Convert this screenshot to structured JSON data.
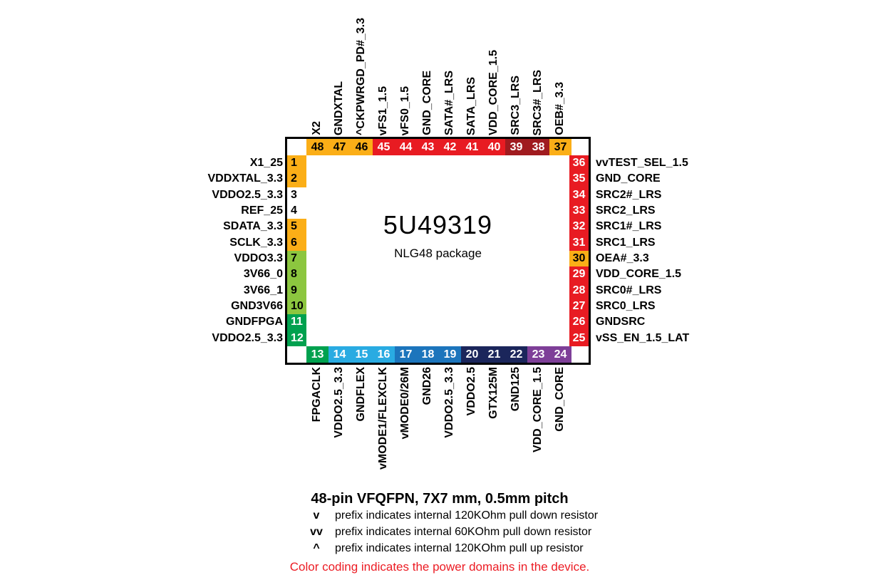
{
  "chip": {
    "part_number": "5U49319",
    "package_label": "NLG48 package"
  },
  "palette": {
    "orange": "#FBAE17",
    "white": "#FFFFFF",
    "lightgreen": "#8CC63F",
    "green": "#00A14F",
    "cyan": "#29ABE2",
    "blue": "#1C75BC",
    "navy": "#1B265B",
    "purple": "#7E3F98",
    "red": "#E81B22",
    "maroon": "#A01B1F",
    "black": "#000000",
    "textwhite": "#FFFFFF"
  },
  "pins": {
    "top": [
      {
        "n": "48",
        "label": "X2",
        "bg": "orange",
        "fg": "black"
      },
      {
        "n": "47",
        "label": "GNDXTAL",
        "bg": "orange",
        "fg": "black"
      },
      {
        "n": "46",
        "label": "^CKPWRGD_PD#_3.3",
        "bg": "orange",
        "fg": "black"
      },
      {
        "n": "45",
        "label": "vFS1_1.5",
        "bg": "red",
        "fg": "textwhite"
      },
      {
        "n": "44",
        "label": "vFS0_1.5",
        "bg": "red",
        "fg": "textwhite"
      },
      {
        "n": "43",
        "label": "GND_CORE",
        "bg": "red",
        "fg": "textwhite"
      },
      {
        "n": "42",
        "label": "SATA#_LRS",
        "bg": "red",
        "fg": "textwhite"
      },
      {
        "n": "41",
        "label": "SATA_LRS",
        "bg": "red",
        "fg": "textwhite"
      },
      {
        "n": "40",
        "label": "VDD_CORE_1.5",
        "bg": "red",
        "fg": "textwhite"
      },
      {
        "n": "39",
        "label": "SRC3_LRS",
        "bg": "maroon",
        "fg": "textwhite"
      },
      {
        "n": "38",
        "label": "SRC3#_LRS",
        "bg": "maroon",
        "fg": "textwhite"
      },
      {
        "n": "37",
        "label": "OEB#_3.3",
        "bg": "orange",
        "fg": "black"
      }
    ],
    "left": [
      {
        "n": "1",
        "label": "X1_25",
        "bg": "orange",
        "fg": "black"
      },
      {
        "n": "2",
        "label": "VDDXTAL_3.3",
        "bg": "orange",
        "fg": "black"
      },
      {
        "n": "3",
        "label": "VDDO2.5_3.3",
        "bg": "white",
        "fg": "black"
      },
      {
        "n": "4",
        "label": "REF_25",
        "bg": "white",
        "fg": "black"
      },
      {
        "n": "5",
        "label": "SDATA_3.3",
        "bg": "orange",
        "fg": "black"
      },
      {
        "n": "6",
        "label": "SCLK_3.3",
        "bg": "orange",
        "fg": "black"
      },
      {
        "n": "7",
        "label": "VDDO3.3",
        "bg": "lightgreen",
        "fg": "black"
      },
      {
        "n": "8",
        "label": "3V66_0",
        "bg": "lightgreen",
        "fg": "black"
      },
      {
        "n": "9",
        "label": "3V66_1",
        "bg": "lightgreen",
        "fg": "black"
      },
      {
        "n": "10",
        "label": "GND3V66",
        "bg": "lightgreen",
        "fg": "black"
      },
      {
        "n": "11",
        "label": "GNDFPGA",
        "bg": "green",
        "fg": "textwhite"
      },
      {
        "n": "12",
        "label": "VDDO2.5_3.3",
        "bg": "green",
        "fg": "textwhite"
      }
    ],
    "right": [
      {
        "n": "36",
        "label": "vvTEST_SEL_1.5",
        "bg": "red",
        "fg": "textwhite"
      },
      {
        "n": "35",
        "label": "GND_CORE",
        "bg": "red",
        "fg": "textwhite"
      },
      {
        "n": "34",
        "label": "SRC2#_LRS",
        "bg": "red",
        "fg": "textwhite"
      },
      {
        "n": "33",
        "label": "SRC2_LRS",
        "bg": "red",
        "fg": "textwhite"
      },
      {
        "n": "32",
        "label": "SRC1#_LRS",
        "bg": "red",
        "fg": "textwhite"
      },
      {
        "n": "31",
        "label": "SRC1_LRS",
        "bg": "red",
        "fg": "textwhite"
      },
      {
        "n": "30",
        "label": "OEA#_3.3",
        "bg": "orange",
        "fg": "black"
      },
      {
        "n": "29",
        "label": "VDD_CORE_1.5",
        "bg": "red",
        "fg": "textwhite"
      },
      {
        "n": "28",
        "label": "SRC0#_LRS",
        "bg": "red",
        "fg": "textwhite"
      },
      {
        "n": "27",
        "label": "SRC0_LRS",
        "bg": "red",
        "fg": "textwhite"
      },
      {
        "n": "26",
        "label": "GNDSRC",
        "bg": "red",
        "fg": "textwhite"
      },
      {
        "n": "25",
        "label": "vSS_EN_1.5_LAT",
        "bg": "red",
        "fg": "textwhite"
      }
    ],
    "bottom": [
      {
        "n": "13",
        "label": "FPGACLK",
        "bg": "green",
        "fg": "textwhite"
      },
      {
        "n": "14",
        "label": "VDDO2.5_3.3",
        "bg": "cyan",
        "fg": "textwhite"
      },
      {
        "n": "15",
        "label": "GNDFLEX",
        "bg": "cyan",
        "fg": "textwhite"
      },
      {
        "n": "16",
        "label": "vMODE1/FLEXCLK",
        "bg": "cyan",
        "fg": "textwhite"
      },
      {
        "n": "17",
        "label": "vMODE0/26M",
        "bg": "blue",
        "fg": "textwhite"
      },
      {
        "n": "18",
        "label": "GND26",
        "bg": "blue",
        "fg": "textwhite"
      },
      {
        "n": "19",
        "label": "VDDO2.5_3.3",
        "bg": "blue",
        "fg": "textwhite"
      },
      {
        "n": "20",
        "label": "VDDO2.5",
        "bg": "navy",
        "fg": "textwhite"
      },
      {
        "n": "21",
        "label": "GTX125M",
        "bg": "navy",
        "fg": "textwhite"
      },
      {
        "n": "22",
        "label": "GND125",
        "bg": "navy",
        "fg": "textwhite"
      },
      {
        "n": "23",
        "label": "VDD_CORE_1.5",
        "bg": "purple",
        "fg": "textwhite"
      },
      {
        "n": "24",
        "label": "GND_CORE",
        "bg": "purple",
        "fg": "textwhite"
      }
    ]
  },
  "footer": {
    "title": "48-pin VFQFPN, 7X7 mm, 0.5mm pitch",
    "notes": [
      {
        "prefix": "v",
        "text": "prefix indicates internal 120KOhm pull down resistor"
      },
      {
        "prefix": "vv",
        "text": "prefix indicates internal 60KOhm pull down resistor"
      },
      {
        "prefix": "^",
        "text": "prefix indicates internal 120KOhm pull up resistor"
      }
    ],
    "color_note": {
      "text": "Color coding indicates the power domains in the device.",
      "color": "#EC1C24"
    }
  }
}
